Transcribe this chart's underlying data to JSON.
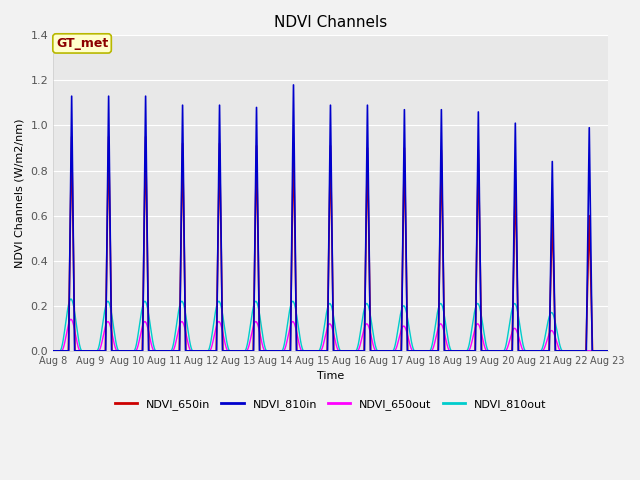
{
  "title": "NDVI Channels",
  "xlabel": "Time",
  "ylabel": "NDVI Channels (W/m2/nm)",
  "ylim": [
    0.0,
    1.4
  ],
  "fig_bg": "#f2f2f2",
  "axes_bg": "#e8e8e8",
  "annotation_text": "GT_met",
  "annotation_color": "#8b0000",
  "annotation_bg": "#ffffcc",
  "annotation_border": "#b8b800",
  "series_colors": {
    "NDVI_650in": "#cc0000",
    "NDVI_810in": "#0000cc",
    "NDVI_650out": "#ff00ff",
    "NDVI_810out": "#00cccc"
  },
  "series_lw": {
    "NDVI_650in": 1.2,
    "NDVI_810in": 1.2,
    "NDVI_650out": 1.0,
    "NDVI_810out": 1.0
  },
  "tick_labels": [
    "Aug 8",
    "Aug 9",
    "Aug 10",
    "Aug 11",
    "Aug 12",
    "Aug 13",
    "Aug 14",
    "Aug 15",
    "Aug 16",
    "Aug 17",
    "Aug 18",
    "Aug 19",
    "Aug 20",
    "Aug 21",
    "Aug 22",
    "Aug 23"
  ],
  "peak_heights_810in": [
    1.13,
    1.13,
    1.13,
    1.09,
    1.09,
    1.08,
    1.18,
    1.09,
    1.09,
    1.07,
    1.07,
    1.06,
    1.01,
    0.84,
    0.99
  ],
  "peak_heights_650in": [
    0.95,
    0.95,
    0.95,
    0.92,
    0.92,
    0.91,
    0.92,
    0.91,
    0.9,
    0.9,
    0.89,
    0.89,
    0.76,
    0.61,
    0.6
  ],
  "peak_heights_810out": [
    0.23,
    0.22,
    0.22,
    0.22,
    0.22,
    0.22,
    0.22,
    0.21,
    0.21,
    0.2,
    0.21,
    0.21,
    0.21,
    0.17,
    0.0
  ],
  "peak_heights_650out": [
    0.14,
    0.13,
    0.13,
    0.13,
    0.13,
    0.13,
    0.13,
    0.12,
    0.12,
    0.11,
    0.12,
    0.12,
    0.1,
    0.09,
    0.0
  ],
  "num_cycles": 15,
  "grid_color": "#ffffff",
  "grid_lw": 0.8,
  "title_fontsize": 11,
  "label_fontsize": 8,
  "tick_fontsize": 7,
  "legend_fontsize": 8
}
